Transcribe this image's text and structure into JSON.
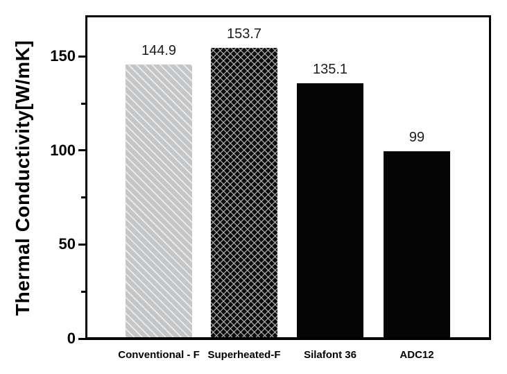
{
  "chart_data": {
    "type": "bar",
    "title": "",
    "xlabel": "",
    "ylabel": "Thermal Conductivity[W/mK]",
    "categories": [
      "Conventional - F",
      "Superheated-F",
      "Silafont 36",
      "ADC12"
    ],
    "values": [
      144.9,
      153.7,
      135.1,
      99
    ],
    "value_labels": [
      "144.9",
      "153.7",
      "135.1",
      "99"
    ],
    "ylim": [
      0,
      170
    ],
    "yticks_major": [
      0,
      50,
      100,
      150
    ],
    "ytick_labels": [
      "0",
      "50",
      "100",
      "150"
    ],
    "yticks_minor": [
      25,
      75,
      125
    ],
    "grid": false,
    "legend_position": "none",
    "bar_styles": [
      {
        "name": "hatched-light-gray",
        "fill": "#c5c6c8",
        "pattern": "diagonal-light",
        "pattern_color": "#f0f0f0"
      },
      {
        "name": "crosshatched-black",
        "fill": "#0a0a0a",
        "pattern": "crosshatch",
        "pattern_color": "#bebebe"
      },
      {
        "name": "solid-black",
        "fill": "#050505",
        "pattern": "solid",
        "pattern_color": ""
      },
      {
        "name": "solid-black",
        "fill": "#050505",
        "pattern": "solid",
        "pattern_color": ""
      }
    ],
    "frame_color": "#000000",
    "background_color": "#ffffff",
    "text_color": "#000000"
  }
}
